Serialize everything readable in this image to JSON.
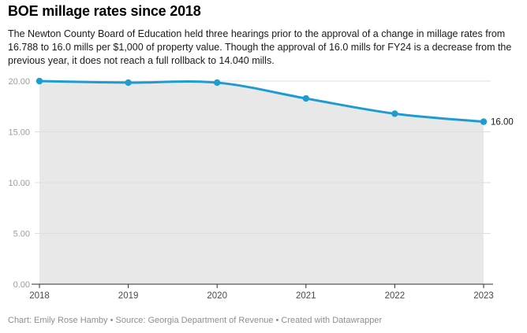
{
  "header": {
    "title": "BOE millage rates since 2018",
    "description": "The Newton County Board of Education held three hearings prior to the approval of a change in millage rates from 16.788 to 16.0 mills per $1,000 of property value. Though the approval of 16.0 mills for FY24 is a decrease from the previous year, it does not reach a full rollback to 14.040 mills."
  },
  "chart_data": {
    "type": "line",
    "title": "BOE millage rates since 2018",
    "x": [
      "2018",
      "2019",
      "2020",
      "2021",
      "2022",
      "2023"
    ],
    "series": [
      {
        "name": "Millage rate",
        "values": [
          20.0,
          19.85,
          19.85,
          18.29,
          16.788,
          16.0
        ]
      }
    ],
    "end_point_label": "16.00",
    "xlabel": "",
    "ylabel": "",
    "y_ticks": [
      {
        "value": 20,
        "label": "20.00"
      },
      {
        "value": 15,
        "label": "15.00"
      },
      {
        "value": 10,
        "label": "10.00"
      },
      {
        "value": 5,
        "label": "5.00"
      },
      {
        "value": 0,
        "label": "0.00"
      }
    ],
    "ylim": [
      0,
      20
    ],
    "grid": "horizontal",
    "legend": "none",
    "area_fill": true,
    "colors": {
      "line": "#1e9cd2",
      "area": "#e8e8e8",
      "gridline": "#dedede",
      "axis": "#2f2f2f",
      "y_tick_text": "#9c9c9c",
      "x_tick_text": "#4b4b4b",
      "value_label_text": "#191919"
    }
  },
  "footer": {
    "credit": "Chart: Emily Rose Hamby • Source: Georgia Department of Revenue • Created with Datawrapper"
  }
}
